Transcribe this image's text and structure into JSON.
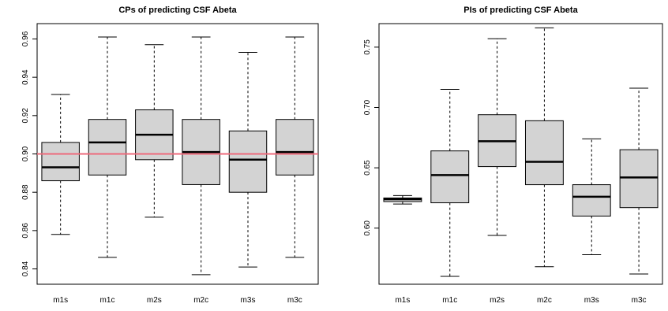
{
  "chart_data": [
    {
      "type": "boxplot",
      "title": "CPs of predicting CSF Abeta",
      "xlabel": "",
      "ylabel": "",
      "categories": [
        "m1s",
        "m1c",
        "m2s",
        "m2c",
        "m3s",
        "m3c"
      ],
      "ylim": [
        0.832,
        0.968
      ],
      "yticks": [
        0.84,
        0.86,
        0.88,
        0.9,
        0.92,
        0.94,
        0.96
      ],
      "ytick_labels": [
        "0.84",
        "0.86",
        "0.88",
        "0.90",
        "0.92",
        "0.94",
        "0.96"
      ],
      "boxes": [
        {
          "min": 0.858,
          "q1": 0.886,
          "median": 0.893,
          "q3": 0.906,
          "max": 0.931
        },
        {
          "min": 0.846,
          "q1": 0.889,
          "median": 0.906,
          "q3": 0.918,
          "max": 0.961
        },
        {
          "min": 0.867,
          "q1": 0.897,
          "median": 0.91,
          "q3": 0.923,
          "max": 0.957
        },
        {
          "min": 0.837,
          "q1": 0.884,
          "median": 0.901,
          "q3": 0.918,
          "max": 0.961
        },
        {
          "min": 0.841,
          "q1": 0.88,
          "median": 0.897,
          "q3": 0.912,
          "max": 0.953
        },
        {
          "min": 0.846,
          "q1": 0.889,
          "median": 0.901,
          "q3": 0.918,
          "max": 0.961
        }
      ],
      "reference_line": {
        "y": 0.9,
        "color": "#ee6a7b"
      },
      "box_fill": "#d3d3d3",
      "grid": false
    },
    {
      "type": "boxplot",
      "title": "PIs of predicting CSF Abeta",
      "xlabel": "",
      "ylabel": "",
      "categories": [
        "m1s",
        "m1c",
        "m2s",
        "m2c",
        "m3s",
        "m3c"
      ],
      "ylim": [
        0.5535,
        0.7695
      ],
      "yticks": [
        0.6,
        0.65,
        0.7,
        0.75
      ],
      "ytick_labels": [
        "0.60",
        "0.65",
        "0.70",
        "0.75"
      ],
      "boxes": [
        {
          "min": 0.62,
          "q1": 0.622,
          "median": 0.624,
          "q3": 0.625,
          "max": 0.627
        },
        {
          "min": 0.56,
          "q1": 0.621,
          "median": 0.644,
          "q3": 0.664,
          "max": 0.715
        },
        {
          "min": 0.594,
          "q1": 0.651,
          "median": 0.672,
          "q3": 0.694,
          "max": 0.757
        },
        {
          "min": 0.568,
          "q1": 0.636,
          "median": 0.655,
          "q3": 0.689,
          "max": 0.766
        },
        {
          "min": 0.578,
          "q1": 0.61,
          "median": 0.626,
          "q3": 0.636,
          "max": 0.674
        },
        {
          "min": 0.562,
          "q1": 0.617,
          "median": 0.642,
          "q3": 0.665,
          "max": 0.716
        }
      ],
      "box_fill": "#d3d3d3",
      "grid": false
    }
  ]
}
